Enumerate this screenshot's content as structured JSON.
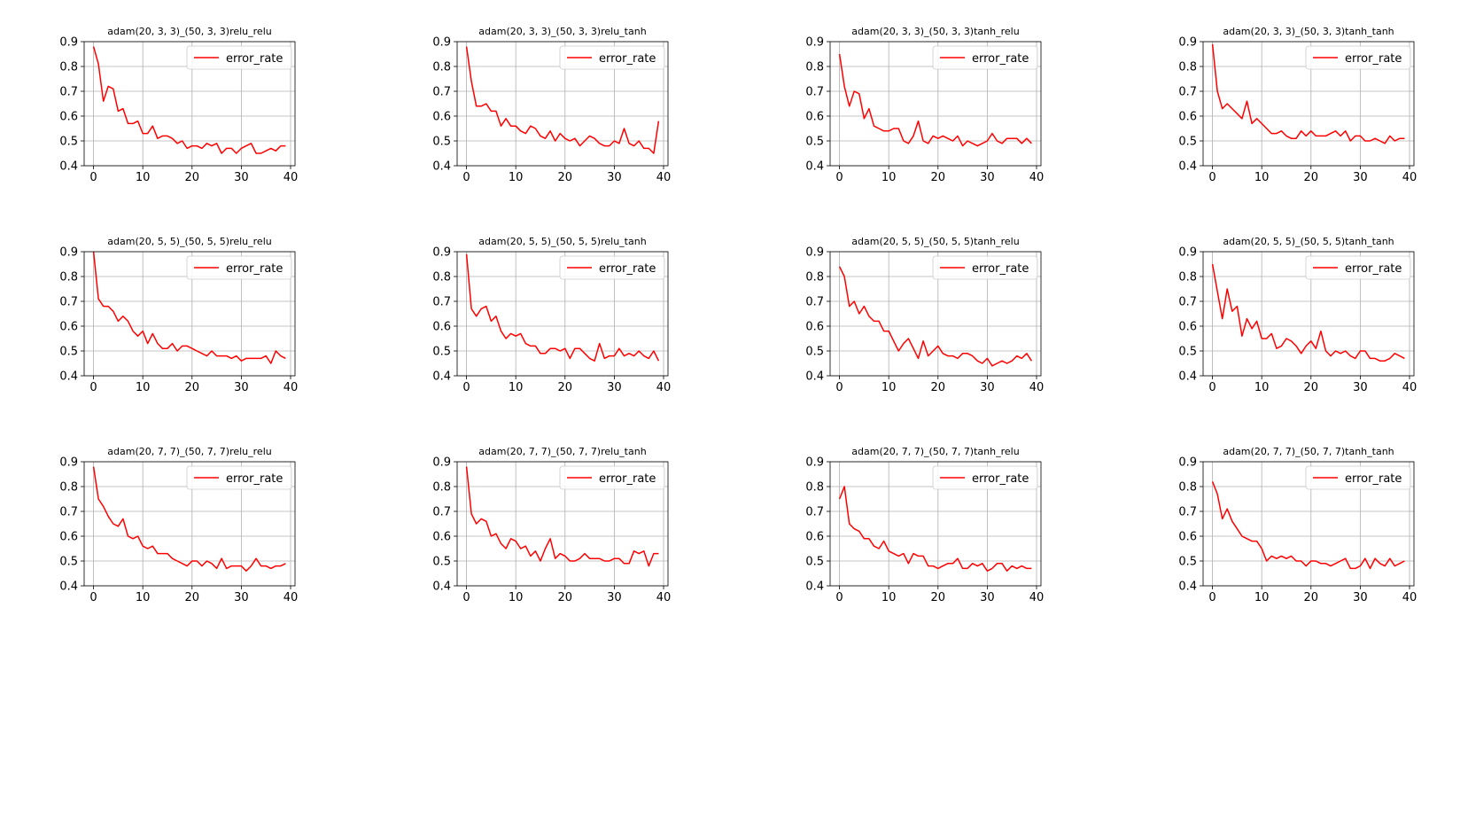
{
  "figure": {
    "legend_label": "error_rate",
    "line_color": "#ff0000",
    "grid_color": "#b0b0b0"
  },
  "chart_data": [
    {
      "type": "line",
      "title": "adam(20, 3, 3)_(50, 3, 3)relu_relu",
      "xlim": [
        0,
        39
      ],
      "ylim": [
        0.4,
        0.9
      ],
      "xticks": [
        0,
        10,
        20,
        30,
        40
      ],
      "yticks": [
        0.4,
        0.5,
        0.6,
        0.7,
        0.8,
        0.9
      ],
      "grid": true,
      "legend": "upper right",
      "series": [
        {
          "name": "error_rate",
          "color": "#ff0000",
          "values": [
            0.88,
            0.81,
            0.66,
            0.72,
            0.71,
            0.62,
            0.63,
            0.57,
            0.57,
            0.58,
            0.53,
            0.53,
            0.56,
            0.51,
            0.52,
            0.52,
            0.51,
            0.49,
            0.5,
            0.47,
            0.48,
            0.48,
            0.47,
            0.49,
            0.48,
            0.49,
            0.45,
            0.47,
            0.47,
            0.45,
            0.47,
            0.48,
            0.49,
            0.45,
            0.45,
            0.46,
            0.47,
            0.46,
            0.48,
            0.48
          ]
        }
      ]
    },
    {
      "type": "line",
      "title": "adam(20, 3, 3)_(50, 3, 3)relu_tanh",
      "xlim": [
        0,
        39
      ],
      "ylim": [
        0.4,
        0.9
      ],
      "xticks": [
        0,
        10,
        20,
        30,
        40
      ],
      "yticks": [
        0.4,
        0.5,
        0.6,
        0.7,
        0.8,
        0.9
      ],
      "grid": true,
      "legend": "upper right",
      "series": [
        {
          "name": "error_rate",
          "color": "#ff0000",
          "values": [
            0.88,
            0.74,
            0.64,
            0.64,
            0.65,
            0.62,
            0.62,
            0.56,
            0.59,
            0.56,
            0.56,
            0.54,
            0.53,
            0.56,
            0.55,
            0.52,
            0.51,
            0.54,
            0.5,
            0.53,
            0.51,
            0.5,
            0.51,
            0.48,
            0.5,
            0.52,
            0.51,
            0.49,
            0.48,
            0.48,
            0.5,
            0.49,
            0.55,
            0.49,
            0.48,
            0.5,
            0.47,
            0.47,
            0.45,
            0.58
          ]
        }
      ]
    },
    {
      "type": "line",
      "title": "adam(20, 3, 3)_(50, 3, 3)tanh_relu",
      "xlim": [
        0,
        39
      ],
      "ylim": [
        0.4,
        0.9
      ],
      "xticks": [
        0,
        10,
        20,
        30,
        40
      ],
      "yticks": [
        0.4,
        0.5,
        0.6,
        0.7,
        0.8,
        0.9
      ],
      "grid": true,
      "legend": "upper right",
      "series": [
        {
          "name": "error_rate",
          "color": "#ff0000",
          "values": [
            0.85,
            0.72,
            0.64,
            0.7,
            0.69,
            0.59,
            0.63,
            0.56,
            0.55,
            0.54,
            0.54,
            0.55,
            0.55,
            0.5,
            0.49,
            0.52,
            0.58,
            0.5,
            0.49,
            0.52,
            0.51,
            0.52,
            0.51,
            0.5,
            0.52,
            0.48,
            0.5,
            0.49,
            0.48,
            0.49,
            0.5,
            0.53,
            0.5,
            0.49,
            0.51,
            0.51,
            0.51,
            0.49,
            0.51,
            0.49
          ]
        }
      ]
    },
    {
      "type": "line",
      "title": "adam(20, 3, 3)_(50, 3, 3)tanh_tanh",
      "xlim": [
        0,
        39
      ],
      "ylim": [
        0.4,
        0.9
      ],
      "xticks": [
        0,
        10,
        20,
        30,
        40
      ],
      "yticks": [
        0.4,
        0.5,
        0.6,
        0.7,
        0.8,
        0.9
      ],
      "grid": true,
      "legend": "upper right",
      "series": [
        {
          "name": "error_rate",
          "color": "#ff0000",
          "values": [
            0.89,
            0.7,
            0.63,
            0.65,
            0.63,
            0.61,
            0.59,
            0.66,
            0.57,
            0.59,
            0.57,
            0.55,
            0.53,
            0.53,
            0.54,
            0.52,
            0.51,
            0.51,
            0.54,
            0.52,
            0.54,
            0.52,
            0.52,
            0.52,
            0.53,
            0.54,
            0.52,
            0.54,
            0.5,
            0.52,
            0.52,
            0.5,
            0.5,
            0.51,
            0.5,
            0.49,
            0.52,
            0.5,
            0.51,
            0.51
          ]
        }
      ]
    },
    {
      "type": "line",
      "title": "adam(20, 5, 5)_(50, 5, 5)relu_relu",
      "xlim": [
        0,
        39
      ],
      "ylim": [
        0.4,
        0.9
      ],
      "xticks": [
        0,
        10,
        20,
        30,
        40
      ],
      "yticks": [
        0.4,
        0.5,
        0.6,
        0.7,
        0.8,
        0.9
      ],
      "grid": true,
      "legend": "upper right",
      "series": [
        {
          "name": "error_rate",
          "color": "#ff0000",
          "values": [
            0.9,
            0.71,
            0.68,
            0.68,
            0.66,
            0.62,
            0.64,
            0.62,
            0.58,
            0.56,
            0.58,
            0.53,
            0.57,
            0.53,
            0.51,
            0.51,
            0.53,
            0.5,
            0.52,
            0.52,
            0.51,
            0.5,
            0.49,
            0.48,
            0.5,
            0.48,
            0.48,
            0.48,
            0.47,
            0.48,
            0.46,
            0.47,
            0.47,
            0.47,
            0.47,
            0.48,
            0.45,
            0.5,
            0.48,
            0.47
          ]
        }
      ]
    },
    {
      "type": "line",
      "title": "adam(20, 5, 5)_(50, 5, 5)relu_tanh",
      "xlim": [
        0,
        39
      ],
      "ylim": [
        0.4,
        0.9
      ],
      "xticks": [
        0,
        10,
        20,
        30,
        40
      ],
      "yticks": [
        0.4,
        0.5,
        0.6,
        0.7,
        0.8,
        0.9
      ],
      "grid": true,
      "legend": "upper right",
      "series": [
        {
          "name": "error_rate",
          "color": "#ff0000",
          "values": [
            0.89,
            0.67,
            0.64,
            0.67,
            0.68,
            0.62,
            0.64,
            0.58,
            0.55,
            0.57,
            0.56,
            0.57,
            0.53,
            0.52,
            0.52,
            0.49,
            0.49,
            0.51,
            0.51,
            0.5,
            0.51,
            0.47,
            0.51,
            0.51,
            0.49,
            0.47,
            0.46,
            0.53,
            0.47,
            0.48,
            0.48,
            0.51,
            0.48,
            0.49,
            0.48,
            0.5,
            0.48,
            0.47,
            0.5,
            0.46
          ]
        }
      ]
    },
    {
      "type": "line",
      "title": "adam(20, 5, 5)_(50, 5, 5)tanh_relu",
      "xlim": [
        0,
        39
      ],
      "ylim": [
        0.4,
        0.9
      ],
      "xticks": [
        0,
        10,
        20,
        30,
        40
      ],
      "yticks": [
        0.4,
        0.5,
        0.6,
        0.7,
        0.8,
        0.9
      ],
      "grid": true,
      "legend": "upper right",
      "series": [
        {
          "name": "error_rate",
          "color": "#ff0000",
          "values": [
            0.84,
            0.8,
            0.68,
            0.7,
            0.65,
            0.68,
            0.64,
            0.62,
            0.62,
            0.58,
            0.58,
            0.54,
            0.5,
            0.53,
            0.55,
            0.51,
            0.47,
            0.54,
            0.48,
            0.5,
            0.52,
            0.49,
            0.48,
            0.48,
            0.47,
            0.49,
            0.49,
            0.48,
            0.46,
            0.45,
            0.47,
            0.44,
            0.45,
            0.46,
            0.45,
            0.46,
            0.48,
            0.47,
            0.49,
            0.46
          ]
        }
      ]
    },
    {
      "type": "line",
      "title": "adam(20, 5, 5)_(50, 5, 5)tanh_tanh",
      "xlim": [
        0,
        39
      ],
      "ylim": [
        0.4,
        0.9
      ],
      "xticks": [
        0,
        10,
        20,
        30,
        40
      ],
      "yticks": [
        0.4,
        0.5,
        0.6,
        0.7,
        0.8,
        0.9
      ],
      "grid": true,
      "legend": "upper right",
      "series": [
        {
          "name": "error_rate",
          "color": "#ff0000",
          "values": [
            0.85,
            0.74,
            0.63,
            0.75,
            0.66,
            0.68,
            0.56,
            0.63,
            0.59,
            0.62,
            0.55,
            0.55,
            0.57,
            0.51,
            0.52,
            0.55,
            0.54,
            0.52,
            0.49,
            0.52,
            0.54,
            0.51,
            0.58,
            0.5,
            0.48,
            0.5,
            0.49,
            0.5,
            0.48,
            0.47,
            0.5,
            0.5,
            0.47,
            0.47,
            0.46,
            0.46,
            0.47,
            0.49,
            0.48,
            0.47
          ]
        }
      ]
    },
    {
      "type": "line",
      "title": "adam(20, 7, 7)_(50, 7, 7)relu_relu",
      "xlim": [
        0,
        39
      ],
      "ylim": [
        0.4,
        0.9
      ],
      "xticks": [
        0,
        10,
        20,
        30,
        40
      ],
      "yticks": [
        0.4,
        0.5,
        0.6,
        0.7,
        0.8,
        0.9
      ],
      "grid": true,
      "legend": "upper right",
      "series": [
        {
          "name": "error_rate",
          "color": "#ff0000",
          "values": [
            0.88,
            0.75,
            0.72,
            0.68,
            0.65,
            0.64,
            0.67,
            0.6,
            0.59,
            0.6,
            0.56,
            0.55,
            0.56,
            0.53,
            0.53,
            0.53,
            0.51,
            0.5,
            0.49,
            0.48,
            0.5,
            0.5,
            0.48,
            0.5,
            0.49,
            0.47,
            0.51,
            0.47,
            0.48,
            0.48,
            0.48,
            0.46,
            0.48,
            0.51,
            0.48,
            0.48,
            0.47,
            0.48,
            0.48,
            0.49
          ]
        }
      ]
    },
    {
      "type": "line",
      "title": "adam(20, 7, 7)_(50, 7, 7)relu_tanh",
      "xlim": [
        0,
        39
      ],
      "ylim": [
        0.4,
        0.9
      ],
      "xticks": [
        0,
        10,
        20,
        30,
        40
      ],
      "yticks": [
        0.4,
        0.5,
        0.6,
        0.7,
        0.8,
        0.9
      ],
      "grid": true,
      "legend": "upper right",
      "series": [
        {
          "name": "error_rate",
          "color": "#ff0000",
          "values": [
            0.88,
            0.69,
            0.65,
            0.67,
            0.66,
            0.6,
            0.61,
            0.57,
            0.55,
            0.59,
            0.58,
            0.55,
            0.56,
            0.52,
            0.54,
            0.5,
            0.55,
            0.59,
            0.51,
            0.53,
            0.52,
            0.5,
            0.5,
            0.51,
            0.53,
            0.51,
            0.51,
            0.51,
            0.5,
            0.5,
            0.51,
            0.51,
            0.49,
            0.49,
            0.54,
            0.53,
            0.54,
            0.48,
            0.53,
            0.53
          ]
        }
      ]
    },
    {
      "type": "line",
      "title": "adam(20, 7, 7)_(50, 7, 7)tanh_relu",
      "xlim": [
        0,
        39
      ],
      "ylim": [
        0.4,
        0.9
      ],
      "xticks": [
        0,
        10,
        20,
        30,
        40
      ],
      "yticks": [
        0.4,
        0.5,
        0.6,
        0.7,
        0.8,
        0.9
      ],
      "grid": true,
      "legend": "upper right",
      "series": [
        {
          "name": "error_rate",
          "color": "#ff0000",
          "values": [
            0.75,
            0.8,
            0.65,
            0.63,
            0.62,
            0.59,
            0.59,
            0.56,
            0.55,
            0.58,
            0.54,
            0.53,
            0.52,
            0.53,
            0.49,
            0.53,
            0.52,
            0.52,
            0.48,
            0.48,
            0.47,
            0.48,
            0.49,
            0.49,
            0.51,
            0.47,
            0.47,
            0.49,
            0.48,
            0.49,
            0.46,
            0.47,
            0.49,
            0.49,
            0.46,
            0.48,
            0.47,
            0.48,
            0.47,
            0.47
          ]
        }
      ]
    },
    {
      "type": "line",
      "title": "adam(20, 7, 7)_(50, 7, 7)tanh_tanh",
      "xlim": [
        0,
        39
      ],
      "ylim": [
        0.4,
        0.9
      ],
      "xticks": [
        0,
        10,
        20,
        30,
        40
      ],
      "yticks": [
        0.4,
        0.5,
        0.6,
        0.7,
        0.8,
        0.9
      ],
      "grid": true,
      "legend": "upper right",
      "series": [
        {
          "name": "error_rate",
          "color": "#ff0000",
          "values": [
            0.82,
            0.77,
            0.67,
            0.71,
            0.66,
            0.63,
            0.6,
            0.59,
            0.58,
            0.58,
            0.55,
            0.5,
            0.52,
            0.51,
            0.52,
            0.51,
            0.52,
            0.5,
            0.5,
            0.48,
            0.5,
            0.5,
            0.49,
            0.49,
            0.48,
            0.49,
            0.5,
            0.51,
            0.47,
            0.47,
            0.48,
            0.51,
            0.47,
            0.51,
            0.49,
            0.48,
            0.51,
            0.48,
            0.49,
            0.5
          ]
        }
      ]
    }
  ]
}
